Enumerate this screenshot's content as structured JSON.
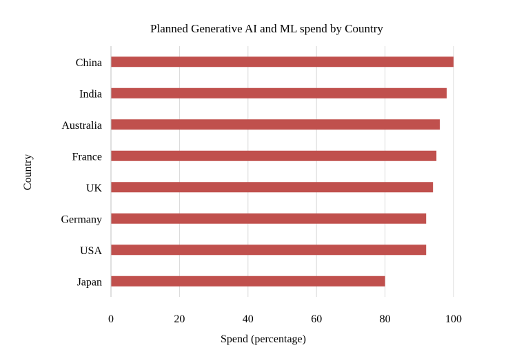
{
  "chart_data": {
    "type": "bar",
    "orientation": "horizontal",
    "title": "Planned Generative AI and ML spend by Country",
    "xlabel": "Spend (percentage)",
    "ylabel": "Country",
    "categories": [
      "China",
      "India",
      "Australia",
      "France",
      "UK",
      "Germany",
      "USA",
      "Japan"
    ],
    "values": [
      100,
      98,
      96,
      95,
      94,
      92,
      92,
      80
    ],
    "xlim": [
      0,
      100
    ],
    "xticks": [
      "0",
      "20",
      "40",
      "60",
      "80",
      "100"
    ],
    "grid": "vertical",
    "legend": "none",
    "bar_color": "#c0504d"
  }
}
